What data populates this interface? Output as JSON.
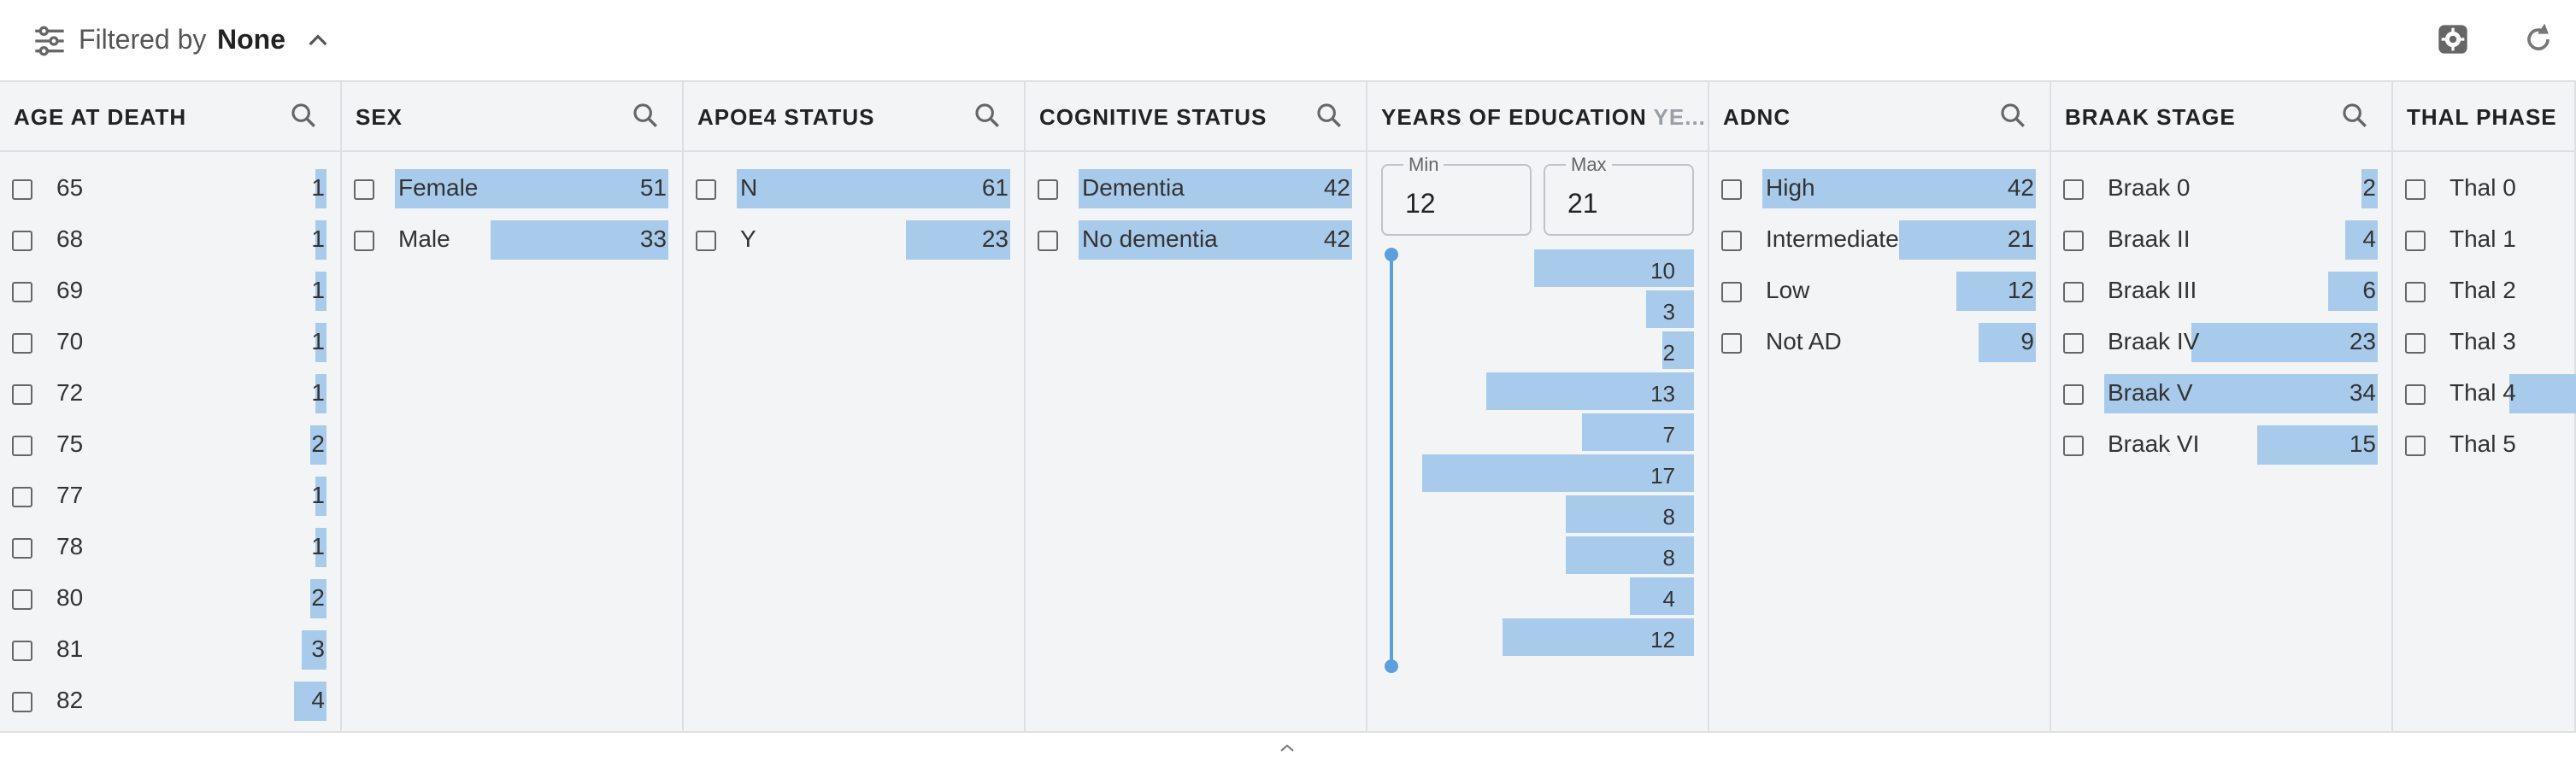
{
  "toolbar": {
    "filtered_label": "Filtered by",
    "filtered_value": "None"
  },
  "colors": {
    "bar": "#a8cbec",
    "accent": "#5b9fdc"
  },
  "columns": [
    {
      "title": "AGE AT DEATH",
      "items": [
        {
          "label": "65",
          "count": "1",
          "fraction": 0.04
        },
        {
          "label": "68",
          "count": "1",
          "fraction": 0.04
        },
        {
          "label": "69",
          "count": "1",
          "fraction": 0.04
        },
        {
          "label": "70",
          "count": "1",
          "fraction": 0.04
        },
        {
          "label": "72",
          "count": "1",
          "fraction": 0.04
        },
        {
          "label": "75",
          "count": "2",
          "fraction": 0.06
        },
        {
          "label": "77",
          "count": "1",
          "fraction": 0.04
        },
        {
          "label": "78",
          "count": "1",
          "fraction": 0.04
        },
        {
          "label": "80",
          "count": "2",
          "fraction": 0.06
        },
        {
          "label": "81",
          "count": "3",
          "fraction": 0.09
        },
        {
          "label": "82",
          "count": "4",
          "fraction": 0.12
        }
      ]
    },
    {
      "title": "SEX",
      "items": [
        {
          "label": "Female",
          "count": "51",
          "fraction": 1.0
        },
        {
          "label": "Male",
          "count": "33",
          "fraction": 0.65
        }
      ]
    },
    {
      "title": "APOE4 STATUS",
      "items": [
        {
          "label": "N",
          "count": "61",
          "fraction": 1.0
        },
        {
          "label": "Y",
          "count": "23",
          "fraction": 0.38
        }
      ]
    },
    {
      "title": "COGNITIVE STATUS",
      "items": [
        {
          "label": "Dementia",
          "count": "42",
          "fraction": 1.0
        },
        {
          "label": "No dementia",
          "count": "42",
          "fraction": 1.0
        }
      ]
    },
    {
      "title": "ADNC",
      "items": [
        {
          "label": "High",
          "count": "42",
          "fraction": 1.0
        },
        {
          "label": "Intermediate",
          "count": "21",
          "fraction": 0.5
        },
        {
          "label": "Low",
          "count": "12",
          "fraction": 0.29
        },
        {
          "label": "Not AD",
          "count": "9",
          "fraction": 0.21
        }
      ]
    },
    {
      "title": "BRAAK STAGE",
      "items": [
        {
          "label": "Braak 0",
          "count": "2",
          "fraction": 0.06
        },
        {
          "label": "Braak II",
          "count": "4",
          "fraction": 0.12
        },
        {
          "label": "Braak III",
          "count": "6",
          "fraction": 0.18
        },
        {
          "label": "Braak IV",
          "count": "23",
          "fraction": 0.68
        },
        {
          "label": "Braak V",
          "count": "34",
          "fraction": 1.0
        },
        {
          "label": "Braak VI",
          "count": "15",
          "fraction": 0.44
        }
      ]
    },
    {
      "title": "THAL PHASE",
      "items": [
        {
          "label": "Thal 0",
          "count": "",
          "fraction": 0
        },
        {
          "label": "Thal 1",
          "count": "",
          "fraction": 0
        },
        {
          "label": "Thal 2",
          "count": "",
          "fraction": 0
        },
        {
          "label": "Thal 3",
          "count": "",
          "fraction": 0
        },
        {
          "label": "Thal 4",
          "count": "",
          "fraction": 0.6
        },
        {
          "label": "Thal 5",
          "count": "",
          "fraction": 0.2
        }
      ]
    }
  ],
  "education": {
    "title": "YEARS OF EDUCATION",
    "title_overflow": "YE...",
    "min_label": "Min",
    "min_value": "12",
    "max_label": "Max",
    "max_value": "21",
    "histogram": [
      10,
      3,
      2,
      13,
      7,
      17,
      8,
      8,
      4,
      12
    ]
  }
}
